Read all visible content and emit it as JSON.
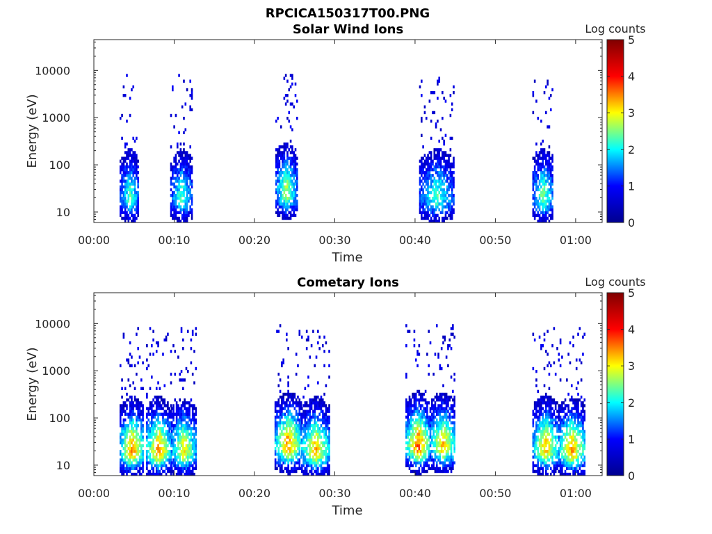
{
  "figure": {
    "title": "RPCICA150317T00.PNG",
    "colormap": "jet",
    "colormap_stops": [
      "#00008f",
      "#0000ff",
      "#00ffff",
      "#ffff00",
      "#ff0000",
      "#800000"
    ]
  },
  "chart_data": [
    {
      "type": "heatmap",
      "title": "Solar Wind Ions",
      "xlabel": "Time",
      "ylabel": "Energy (eV)",
      "x_ticks": [
        "00:00",
        "00:10",
        "00:20",
        "00:30",
        "00:40",
        "00:50",
        "01:00"
      ],
      "x_tick_minutes": [
        0,
        10,
        20,
        30,
        40,
        50,
        60
      ],
      "xlim_minutes": [
        0,
        63.3
      ],
      "y_scale": "log",
      "ylim": [
        6,
        45000
      ],
      "y_ticks": [
        "10",
        "100",
        "1000",
        "10000"
      ],
      "y_tick_values": [
        10,
        100,
        1000,
        10000
      ],
      "colorbar": {
        "label": "Log counts",
        "range": [
          0,
          5
        ],
        "ticks": [
          "0",
          "1",
          "2",
          "3",
          "4",
          "5"
        ],
        "tick_values": [
          0,
          1,
          2,
          3,
          4,
          5
        ]
      },
      "bursts": [
        {
          "start_min": 3.2,
          "end_min": 5.6,
          "core_energy_eV": 20,
          "max_log_counts": 2.2
        },
        {
          "start_min": 9.5,
          "end_min": 12.2,
          "core_energy_eV": 20,
          "max_log_counts": 2.2
        },
        {
          "start_min": 22.6,
          "end_min": 25.2,
          "core_energy_eV": 25,
          "max_log_counts": 2.6
        },
        {
          "start_min": 40.5,
          "end_min": 44.8,
          "core_energy_eV": 20,
          "max_log_counts": 2.2
        },
        {
          "start_min": 54.6,
          "end_min": 57.2,
          "core_energy_eV": 20,
          "max_log_counts": 2.4
        }
      ]
    },
    {
      "type": "heatmap",
      "title": "Cometary Ions",
      "xlabel": "Time",
      "ylabel": "Energy (eV)",
      "x_ticks": [
        "00:00",
        "00:10",
        "00:20",
        "00:30",
        "00:40",
        "00:50",
        "01:00"
      ],
      "x_tick_minutes": [
        0,
        10,
        20,
        30,
        40,
        50,
        60
      ],
      "xlim_minutes": [
        0,
        63.3
      ],
      "y_scale": "log",
      "ylim": [
        6,
        45000
      ],
      "y_ticks": [
        "10",
        "100",
        "1000",
        "10000"
      ],
      "y_tick_values": [
        10,
        100,
        1000,
        10000
      ],
      "colorbar": {
        "label": "Log counts",
        "range": [
          0,
          5
        ],
        "ticks": [
          "0",
          "1",
          "2",
          "3",
          "4",
          "5"
        ],
        "tick_values": [
          0,
          1,
          2,
          3,
          4,
          5
        ]
      },
      "bursts": [
        {
          "start_min": 3.2,
          "end_min": 6.2,
          "core_energy_eV": 20,
          "max_log_counts": 3.4
        },
        {
          "start_min": 6.5,
          "end_min": 9.5,
          "core_energy_eV": 20,
          "max_log_counts": 3.4
        },
        {
          "start_min": 9.6,
          "end_min": 12.6,
          "core_energy_eV": 20,
          "max_log_counts": 3.0
        },
        {
          "start_min": 22.5,
          "end_min": 25.8,
          "core_energy_eV": 25,
          "max_log_counts": 3.4
        },
        {
          "start_min": 25.8,
          "end_min": 29.3,
          "core_energy_eV": 20,
          "max_log_counts": 3.2
        },
        {
          "start_min": 38.8,
          "end_min": 41.8,
          "core_energy_eV": 25,
          "max_log_counts": 3.6
        },
        {
          "start_min": 41.8,
          "end_min": 45.0,
          "core_energy_eV": 25,
          "max_log_counts": 3.2
        },
        {
          "start_min": 54.6,
          "end_min": 57.8,
          "core_energy_eV": 22,
          "max_log_counts": 3.2
        },
        {
          "start_min": 57.8,
          "end_min": 61.2,
          "core_energy_eV": 20,
          "max_log_counts": 3.3
        }
      ]
    }
  ]
}
